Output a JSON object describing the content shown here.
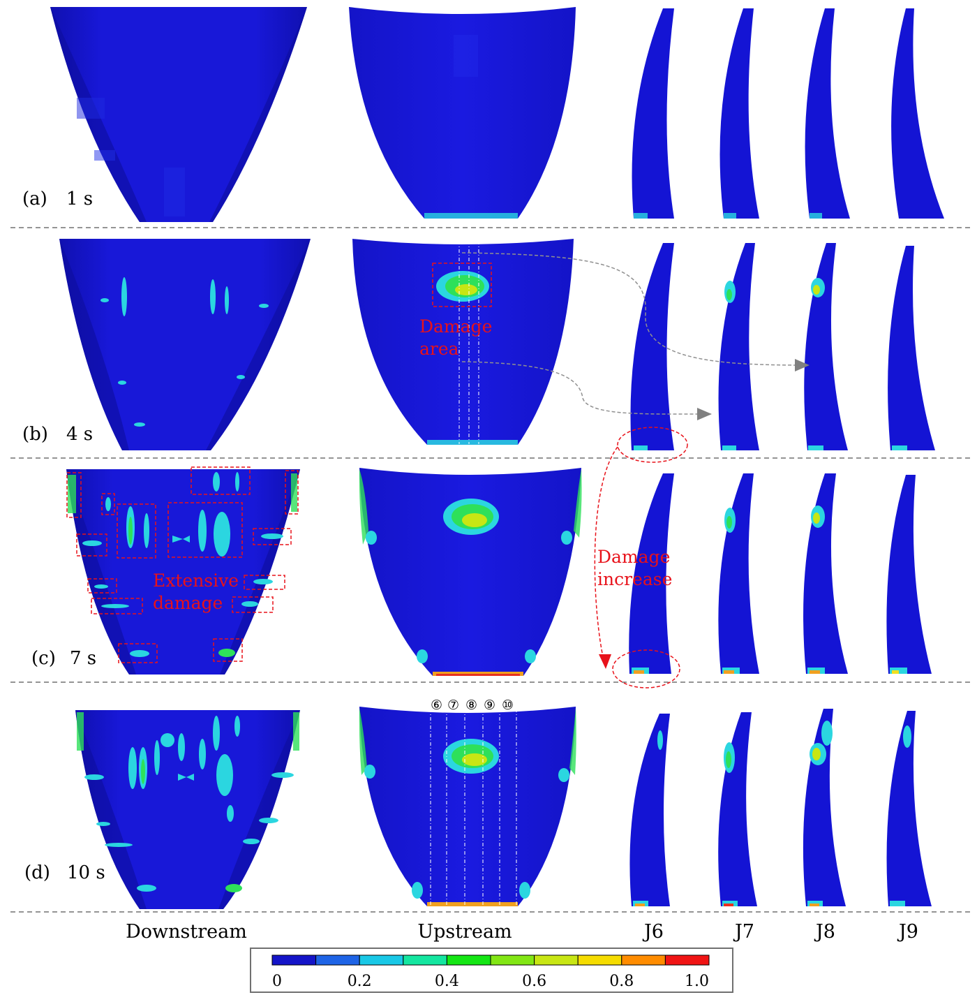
{
  "rows": [
    {
      "letter": "(a)",
      "time": "1 s"
    },
    {
      "letter": "(b)",
      "time": "4 s"
    },
    {
      "letter": "(c)",
      "time": "7 s"
    },
    {
      "letter": "(d)",
      "time": "10 s"
    }
  ],
  "columns": [
    "Downstream",
    "Upstream",
    "J6",
    "J7",
    "J8",
    "J9"
  ],
  "annotations": {
    "damage_area": [
      "Damage",
      "area"
    ],
    "extensive_damage": [
      "Extensive",
      "damage"
    ],
    "damage_increase": [
      "Damage",
      "increase"
    ],
    "section_markers": [
      "⑥",
      "⑦",
      "⑧",
      "⑨",
      "⑩"
    ]
  },
  "legend": {
    "ticks": [
      "0",
      "0.2",
      "0.4",
      "0.6",
      "0.8",
      "1.0"
    ],
    "colors": [
      "#1414c8",
      "#1e64e6",
      "#19c8e6",
      "#14e6a0",
      "#14e614",
      "#82e614",
      "#c8e614",
      "#f5dc00",
      "#ff8c00",
      "#f01414"
    ]
  },
  "colors": {
    "dam_body": "#1712d6",
    "dam_dark": "#1010a8",
    "annotation_red": "#e8121a",
    "cyan": "#2bd6e0",
    "green": "#2ee05a",
    "yellow": "#f0e020",
    "orange": "#f0a020"
  }
}
